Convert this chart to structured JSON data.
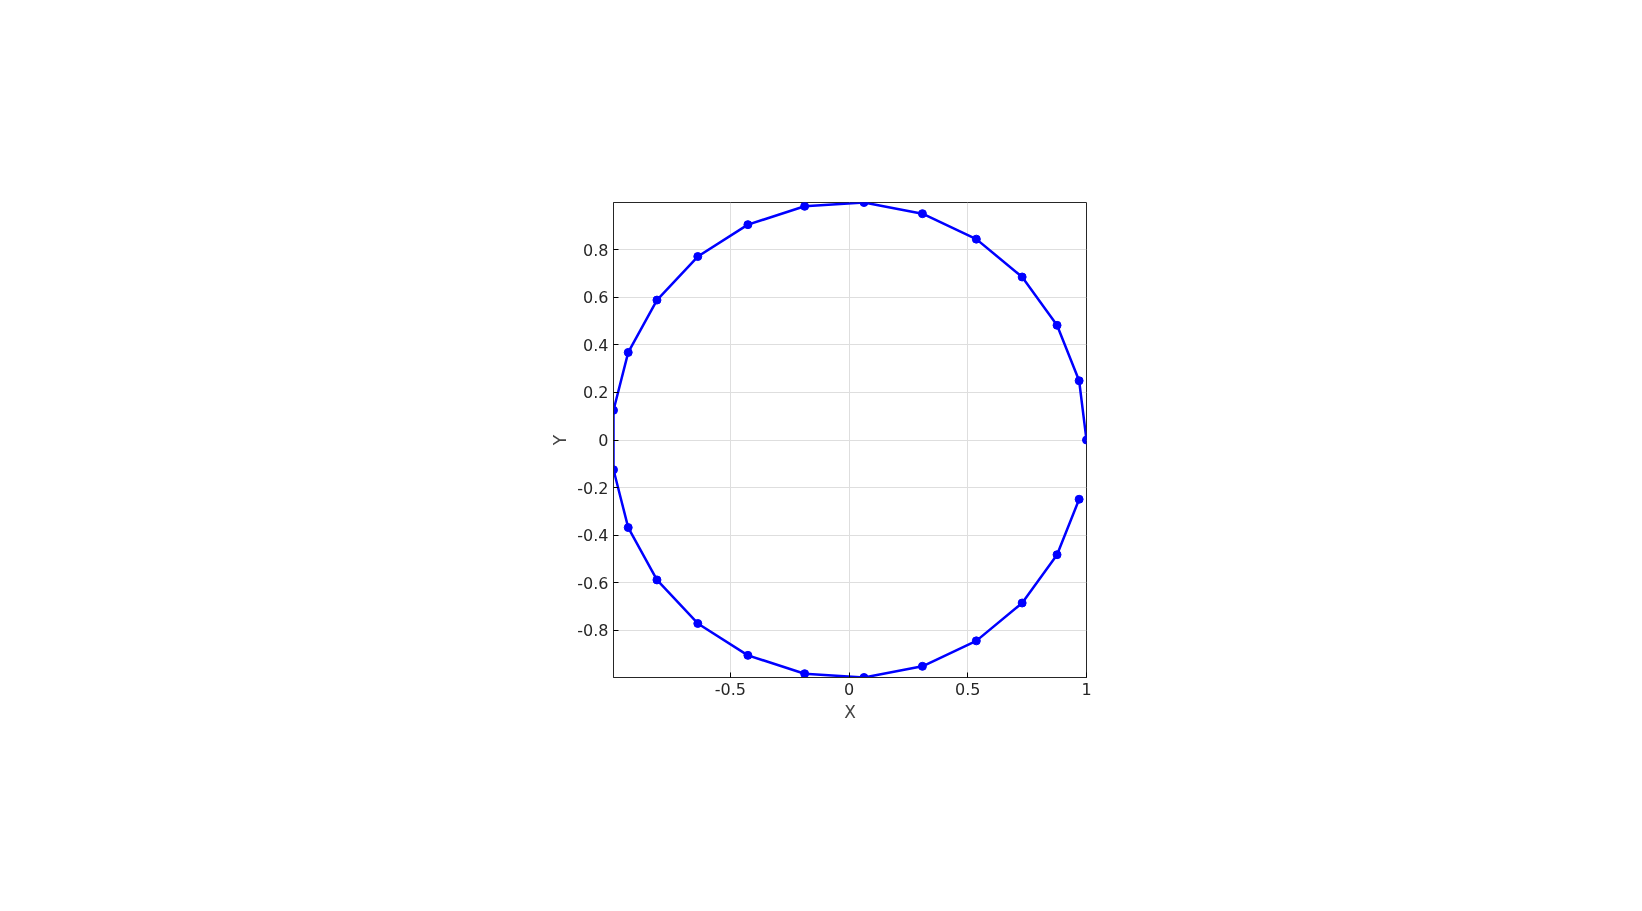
{
  "chart_data": {
    "type": "line",
    "xlabel": "X",
    "ylabel": "Y",
    "marker": "circle",
    "line_style": "solid",
    "grid": true,
    "xlim": [
      -0.992,
      1
    ],
    "ylim": [
      -0.998,
      0.998
    ],
    "xticks": [
      -0.5,
      0,
      0.5,
      1
    ],
    "yticks": [
      -0.8,
      -0.6,
      -0.4,
      -0.2,
      0,
      0.2,
      0.4,
      0.6,
      0.8
    ],
    "x": [
      1,
      0.969,
      0.876,
      0.729,
      0.536,
      0.309,
      0.063,
      -0.187,
      -0.426,
      -0.637,
      -0.809,
      -0.93,
      -0.992,
      -0.992,
      -0.93,
      -0.809,
      -0.637,
      -0.426,
      -0.187,
      0.063,
      0.309,
      0.536,
      0.729,
      0.876,
      0.969
    ],
    "series": [
      {
        "color": "#0000ff",
        "values": [
          0,
          0.249,
          0.482,
          0.685,
          0.844,
          0.951,
          0.998,
          0.982,
          0.905,
          0.771,
          0.588,
          0.368,
          0.125,
          -0.125,
          -0.368,
          -0.588,
          -0.771,
          -0.905,
          -0.982,
          -0.998,
          -0.951,
          -0.844,
          -0.685,
          -0.482,
          -0.249
        ]
      }
    ]
  }
}
